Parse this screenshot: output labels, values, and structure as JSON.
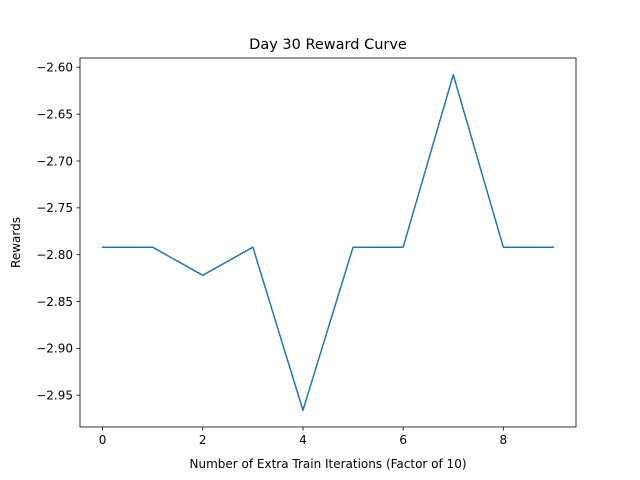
{
  "chart_data": {
    "type": "line",
    "title": "Day 30 Reward Curve",
    "xlabel": "Number of Extra Train Iterations (Factor of 10)",
    "ylabel": "Rewards",
    "x": [
      0,
      1,
      2,
      3,
      4,
      5,
      6,
      7,
      8,
      9
    ],
    "series": [
      {
        "values": [
          -2.792,
          -2.792,
          -2.822,
          -2.792,
          -2.966,
          -2.792,
          -2.792,
          -2.608,
          -2.792,
          -2.792
        ],
        "color": "#1f77b4"
      }
    ],
    "xlim": [
      -0.45,
      9.45
    ],
    "ylim": [
      -2.9839,
      -2.5901
    ],
    "xticks": [
      0,
      2,
      4,
      6,
      8
    ],
    "xtick_labels": [
      "0",
      "2",
      "4",
      "6",
      "8"
    ],
    "yticks": [
      -2.6,
      -2.65,
      -2.7,
      -2.75,
      -2.8,
      -2.85,
      -2.9,
      -2.95
    ],
    "ytick_labels": [
      "−2.60",
      "−2.65",
      "−2.70",
      "−2.75",
      "−2.80",
      "−2.85",
      "−2.90",
      "−2.95"
    ],
    "grid": false,
    "legend": false
  }
}
